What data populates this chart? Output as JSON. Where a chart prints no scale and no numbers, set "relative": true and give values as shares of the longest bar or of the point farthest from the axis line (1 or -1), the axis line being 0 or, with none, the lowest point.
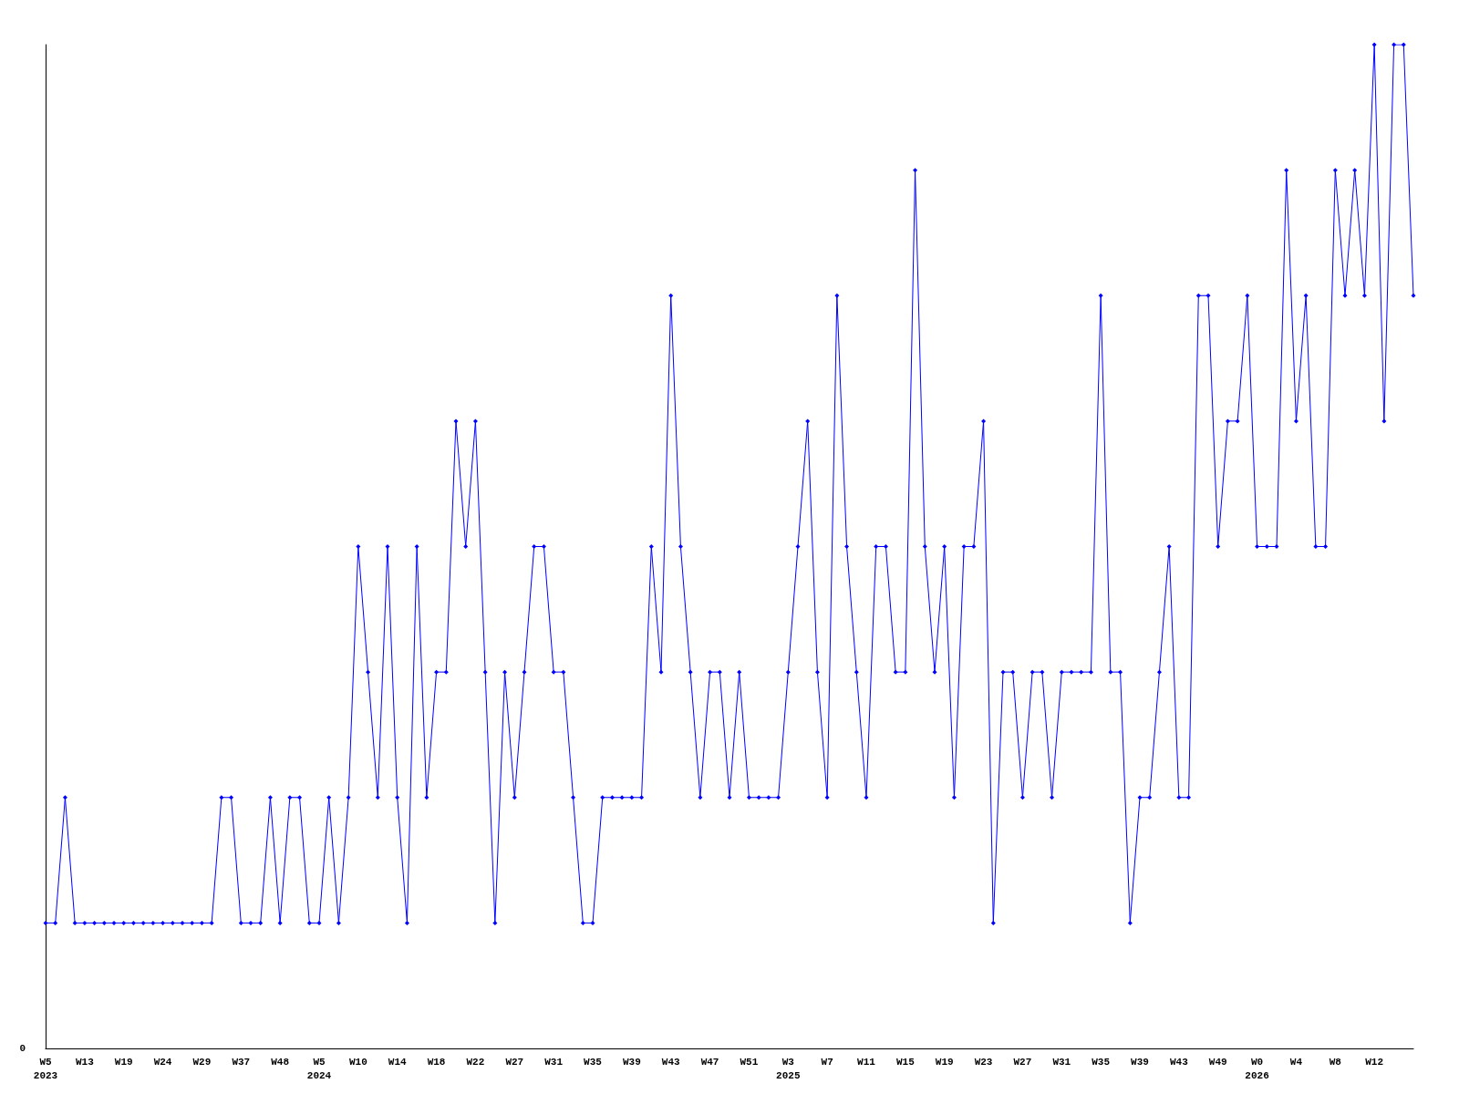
{
  "chart_data": {
    "type": "line",
    "relative": true,
    "marker": "diamond",
    "line_style": "solid",
    "color": "#0000ff",
    "annotations": [
      "0"
    ],
    "categories": [
      "W5\n2023",
      null,
      null,
      null,
      "W13",
      null,
      null,
      null,
      "W19",
      null,
      null,
      null,
      "W24",
      null,
      null,
      null,
      "W29",
      null,
      null,
      null,
      "W37",
      null,
      null,
      null,
      "W48",
      null,
      null,
      null,
      "W5\n2024",
      null,
      null,
      null,
      "W10",
      null,
      null,
      null,
      "W14",
      null,
      null,
      null,
      "W18",
      null,
      null,
      null,
      "W22",
      null,
      null,
      null,
      "W27",
      null,
      null,
      null,
      "W31",
      null,
      null,
      null,
      "W35",
      null,
      null,
      null,
      "W39",
      null,
      null,
      null,
      "W43",
      null,
      null,
      null,
      "W47",
      null,
      null,
      null,
      "W51",
      null,
      null,
      null,
      "W3\n2025",
      null,
      null,
      null,
      "W7",
      null,
      null,
      null,
      "W11",
      null,
      null,
      null,
      "W15",
      null,
      null,
      null,
      "W19",
      null,
      null,
      null,
      "W23",
      null,
      null,
      null,
      "W27",
      null,
      null,
      null,
      "W31",
      null,
      null,
      null,
      "W35",
      null,
      null,
      null,
      "W39",
      null,
      null,
      null,
      "W43",
      null,
      null,
      null,
      "W49",
      null,
      null,
      null,
      "W0\n2026",
      null,
      null,
      null,
      "W4",
      null,
      null,
      null,
      "W8",
      null,
      null,
      null,
      "W12",
      null,
      null,
      null,
      null
    ],
    "values": [
      0.125,
      0.125,
      0.25,
      0.125,
      0.125,
      0.125,
      0.125,
      0.125,
      0.125,
      0.125,
      0.125,
      0.125,
      0.125,
      0.125,
      0.125,
      0.125,
      0.125,
      0.125,
      0.25,
      0.25,
      0.125,
      0.125,
      0.125,
      0.25,
      0.125,
      0.25,
      0.25,
      0.125,
      0.125,
      0.25,
      0.125,
      0.25,
      0.5,
      0.375,
      0.25,
      0.5,
      0.25,
      0.125,
      0.5,
      0.25,
      0.375,
      0.375,
      0.625,
      0.5,
      0.625,
      0.375,
      0.125,
      0.375,
      0.25,
      0.375,
      0.5,
      0.5,
      0.375,
      0.375,
      0.25,
      0.125,
      0.125,
      0.25,
      0.25,
      0.25,
      0.25,
      0.25,
      0.5,
      0.375,
      0.75,
      0.5,
      0.375,
      0.25,
      0.375,
      0.375,
      0.25,
      0.375,
      0.25,
      0.25,
      0.25,
      0.25,
      0.375,
      0.5,
      0.625,
      0.375,
      0.25,
      0.75,
      0.5,
      0.375,
      0.25,
      0.5,
      0.5,
      0.375,
      0.375,
      0.875,
      0.5,
      0.375,
      0.5,
      0.25,
      0.5,
      0.5,
      0.625,
      0.125,
      0.375,
      0.375,
      0.25,
      0.375,
      0.375,
      0.25,
      0.375,
      0.375,
      0.375,
      0.375,
      0.75,
      0.375,
      0.375,
      0.125,
      0.25,
      0.25,
      0.375,
      0.5,
      0.25,
      0.25,
      0.75,
      0.75,
      0.5,
      0.625,
      0.625,
      0.75,
      0.5,
      0.5,
      0.5,
      0.875,
      0.625,
      0.75,
      0.5,
      0.5,
      0.875,
      0.75,
      0.875,
      0.75,
      1,
      0.625,
      1,
      1,
      0.75
    ]
  }
}
